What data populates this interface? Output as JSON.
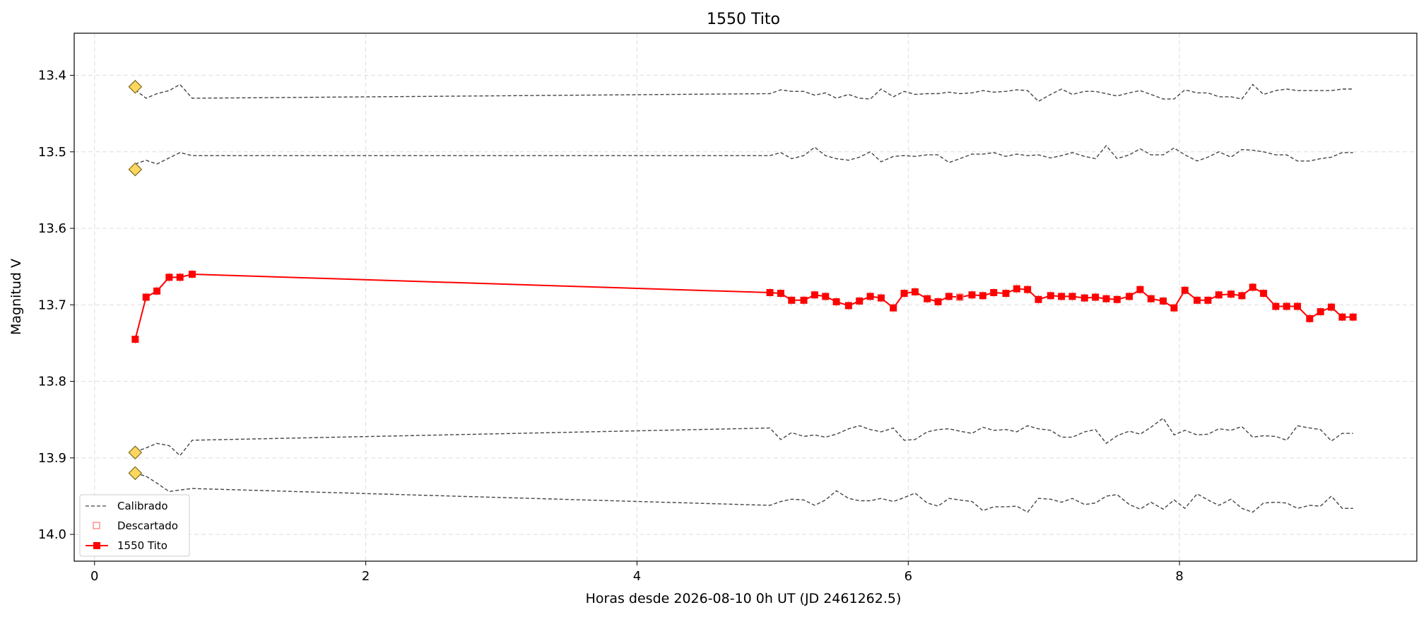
{
  "chart_data": {
    "type": "line",
    "title": "1550 Tito",
    "xlabel": "Horas desde 2026-08-10 0h UT (JD 2461262.5)",
    "ylabel": "Magnitud V",
    "xlim": [
      -0.15,
      9.75
    ],
    "ylim": [
      14.035,
      13.345
    ],
    "y_inverted": true,
    "x_ticks": [
      0,
      2,
      4,
      6,
      8
    ],
    "y_ticks": [
      13.4,
      13.5,
      13.6,
      13.7,
      13.8,
      13.9,
      14.0
    ],
    "x_tick_labels": [
      "0",
      "2",
      "4",
      "6",
      "8"
    ],
    "y_tick_labels": [
      "13.4",
      "13.5",
      "13.6",
      "13.7",
      "13.8",
      "13.9",
      "14.0"
    ],
    "grid": true,
    "legend_position": "lower-left",
    "legend": [
      "Calibrado",
      "Descartado",
      "1550 Tito"
    ],
    "colors": {
      "target": "#ff0000",
      "calibrado": "#444444",
      "reference": "#ffd75e",
      "reference_edge": "#7a6a20",
      "grid": "#dddddd"
    },
    "target": {
      "name": "1550 Tito",
      "x": [
        0.3,
        0.38,
        0.46,
        0.55,
        0.63,
        0.72,
        4.98,
        5.06,
        5.14,
        5.23,
        5.31,
        5.39,
        5.47,
        5.56,
        5.64,
        5.72,
        5.8,
        5.89,
        5.97,
        6.05,
        6.14,
        6.22,
        6.3,
        6.38,
        6.47,
        6.55,
        6.63,
        6.72,
        6.8,
        6.88,
        6.96,
        7.05,
        7.13,
        7.21,
        7.3,
        7.38,
        7.46,
        7.54,
        7.63,
        7.71,
        7.79,
        7.88,
        7.96,
        8.04,
        8.13,
        8.21,
        8.29,
        8.38,
        8.46,
        8.54,
        8.62,
        8.71,
        8.79,
        8.87,
        8.96,
        9.04,
        9.12,
        9.2,
        9.28
      ],
      "y": [
        13.745,
        13.69,
        13.682,
        13.664,
        13.664,
        13.66,
        13.684,
        13.685,
        13.694,
        13.694,
        13.687,
        13.689,
        13.696,
        13.701,
        13.695,
        13.689,
        13.691,
        13.704,
        13.685,
        13.683,
        13.692,
        13.696,
        13.689,
        13.69,
        13.687,
        13.688,
        13.684,
        13.685,
        13.679,
        13.68,
        13.693,
        13.688,
        13.689,
        13.689,
        13.691,
        13.69,
        13.692,
        13.693,
        13.689,
        13.68,
        13.692,
        13.695,
        13.704,
        13.681,
        13.694,
        13.694,
        13.687,
        13.686,
        13.688,
        13.677,
        13.685,
        13.702,
        13.702,
        13.702,
        13.718,
        13.709,
        13.703,
        13.716,
        13.716
      ]
    },
    "descartado": {
      "name": "Descartado",
      "x": [
        6.38
      ],
      "y": [
        13.69
      ]
    },
    "reference_stars": {
      "x": [
        0.3,
        0.3,
        0.3,
        0.3
      ],
      "y": [
        13.415,
        13.523,
        13.893,
        13.92
      ]
    },
    "calibrado": [
      {
        "name": "Calibrado",
        "x": [
          0.3,
          0.38,
          0.46,
          0.55,
          0.63,
          0.72,
          4.98,
          5.06,
          5.14,
          5.23,
          5.31,
          5.39,
          5.47,
          5.56,
          5.64,
          5.72,
          5.8,
          5.89,
          5.97,
          6.05,
          6.14,
          6.22,
          6.3,
          6.38,
          6.47,
          6.55,
          6.63,
          6.72,
          6.8,
          6.88,
          6.96,
          7.05,
          7.13,
          7.21,
          7.3,
          7.38,
          7.46,
          7.54,
          7.63,
          7.71,
          7.79,
          7.88,
          7.96,
          8.04,
          8.13,
          8.21,
          8.29,
          8.38,
          8.46,
          8.54,
          8.62,
          8.71,
          8.79,
          8.87,
          8.96,
          9.04,
          9.12,
          9.2,
          9.28
        ],
        "y": [
          13.419,
          13.43,
          13.424,
          13.42,
          13.412,
          13.43,
          13.424,
          13.419,
          13.421,
          13.421,
          13.426,
          13.423,
          13.43,
          13.425,
          13.43,
          13.431,
          13.418,
          13.428,
          13.421,
          13.425,
          13.424,
          13.424,
          13.422,
          13.424,
          13.423,
          13.42,
          13.422,
          13.421,
          13.419,
          13.42,
          13.434,
          13.425,
          13.418,
          13.425,
          13.421,
          13.421,
          13.424,
          13.427,
          13.423,
          13.42,
          13.425,
          13.431,
          13.431,
          13.419,
          13.423,
          13.423,
          13.428,
          13.428,
          13.431,
          13.412,
          13.425,
          13.42,
          13.418,
          13.42,
          13.42,
          13.42,
          13.42,
          13.418,
          13.418
        ]
      },
      {
        "name": "Calibrado",
        "x": [
          0.3,
          0.38,
          0.46,
          0.55,
          0.63,
          0.72,
          4.98,
          5.06,
          5.14,
          5.23,
          5.31,
          5.39,
          5.47,
          5.56,
          5.64,
          5.72,
          5.8,
          5.89,
          5.97,
          6.05,
          6.14,
          6.22,
          6.3,
          6.38,
          6.47,
          6.55,
          6.63,
          6.72,
          6.8,
          6.88,
          6.96,
          7.05,
          7.13,
          7.21,
          7.3,
          7.38,
          7.46,
          7.54,
          7.63,
          7.71,
          7.79,
          7.88,
          7.96,
          8.04,
          8.13,
          8.21,
          8.29,
          8.38,
          8.46,
          8.54,
          8.62,
          8.71,
          8.79,
          8.87,
          8.96,
          9.04,
          9.12,
          9.2,
          9.28
        ],
        "y": [
          13.516,
          13.511,
          13.516,
          13.508,
          13.501,
          13.505,
          13.505,
          13.501,
          13.509,
          13.505,
          13.494,
          13.505,
          13.509,
          13.511,
          13.507,
          13.5,
          13.513,
          13.506,
          13.505,
          13.506,
          13.504,
          13.504,
          13.514,
          13.509,
          13.503,
          13.503,
          13.501,
          13.506,
          13.503,
          13.505,
          13.504,
          13.508,
          13.505,
          13.501,
          13.506,
          13.509,
          13.492,
          13.509,
          13.504,
          13.496,
          13.504,
          13.504,
          13.495,
          13.504,
          13.512,
          13.507,
          13.5,
          13.507,
          13.497,
          13.498,
          13.5,
          13.504,
          13.504,
          13.512,
          13.512,
          13.509,
          13.507,
          13.501,
          13.501
        ]
      },
      {
        "name": "Calibrado",
        "x": [
          0.3,
          0.38,
          0.46,
          0.55,
          0.63,
          0.72,
          4.98,
          5.06,
          5.14,
          5.23,
          5.31,
          5.39,
          5.47,
          5.56,
          5.64,
          5.72,
          5.8,
          5.89,
          5.97,
          6.05,
          6.14,
          6.22,
          6.3,
          6.38,
          6.47,
          6.55,
          6.63,
          6.72,
          6.8,
          6.88,
          6.96,
          7.05,
          7.13,
          7.21,
          7.3,
          7.38,
          7.46,
          7.54,
          7.63,
          7.71,
          7.79,
          7.88,
          7.96,
          8.04,
          8.13,
          8.21,
          8.29,
          8.38,
          8.46,
          8.54,
          8.62,
          8.71,
          8.79,
          8.87,
          8.96,
          9.04,
          9.12,
          9.2,
          9.28
        ],
        "y": [
          13.892,
          13.887,
          13.881,
          13.884,
          13.897,
          13.877,
          13.861,
          13.876,
          13.867,
          13.872,
          13.87,
          13.873,
          13.869,
          13.862,
          13.858,
          13.863,
          13.866,
          13.861,
          13.877,
          13.876,
          13.866,
          13.863,
          13.862,
          13.865,
          13.868,
          13.86,
          13.864,
          13.863,
          13.866,
          13.858,
          13.862,
          13.864,
          13.873,
          13.873,
          13.866,
          13.863,
          13.881,
          13.871,
          13.865,
          13.869,
          13.86,
          13.848,
          13.87,
          13.864,
          13.87,
          13.869,
          13.862,
          13.864,
          13.859,
          13.873,
          13.871,
          13.872,
          13.877,
          13.858,
          13.861,
          13.863,
          13.878,
          13.868,
          13.868
        ]
      },
      {
        "name": "Calibrado",
        "x": [
          0.3,
          0.38,
          0.46,
          0.55,
          0.63,
          0.72,
          4.98,
          5.06,
          5.14,
          5.23,
          5.31,
          5.39,
          5.47,
          5.56,
          5.64,
          5.72,
          5.8,
          5.89,
          5.97,
          6.05,
          6.14,
          6.22,
          6.3,
          6.38,
          6.47,
          6.55,
          6.63,
          6.72,
          6.8,
          6.88,
          6.96,
          7.05,
          7.13,
          7.21,
          7.3,
          7.38,
          7.46,
          7.54,
          7.63,
          7.71,
          7.79,
          7.88,
          7.96,
          8.04,
          8.13,
          8.21,
          8.29,
          8.38,
          8.46,
          8.54,
          8.62,
          8.71,
          8.79,
          8.87,
          8.96,
          9.04,
          9.12,
          9.2,
          9.28
        ],
        "y": [
          13.92,
          13.924,
          13.933,
          13.944,
          13.942,
          13.94,
          13.962,
          13.957,
          13.954,
          13.955,
          13.962,
          13.955,
          13.943,
          13.953,
          13.956,
          13.956,
          13.953,
          13.957,
          13.952,
          13.946,
          13.959,
          13.963,
          13.953,
          13.955,
          13.957,
          13.969,
          13.964,
          13.964,
          13.963,
          13.971,
          13.953,
          13.954,
          13.958,
          13.953,
          13.961,
          13.959,
          13.95,
          13.948,
          13.961,
          13.967,
          13.958,
          13.967,
          13.955,
          13.966,
          13.947,
          13.955,
          13.962,
          13.954,
          13.966,
          13.971,
          13.959,
          13.958,
          13.959,
          13.966,
          13.962,
          13.963,
          13.95,
          13.966,
          13.966
        ]
      }
    ]
  }
}
